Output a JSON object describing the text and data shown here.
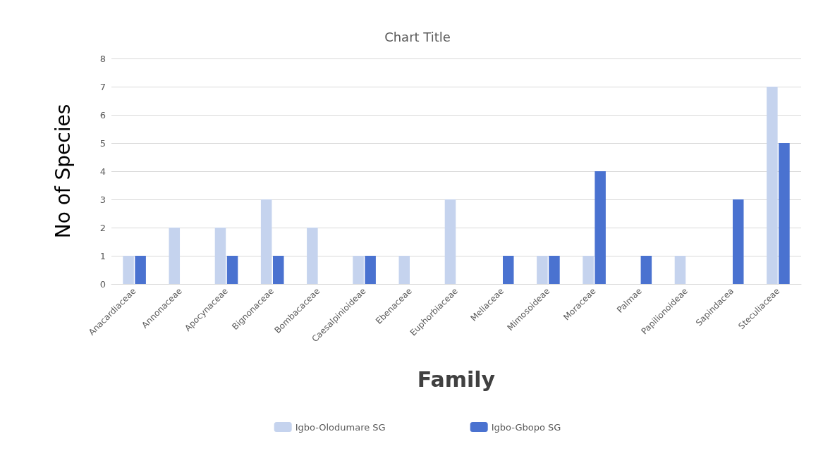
{
  "chart_data": {
    "type": "bar",
    "title": "Chart Title",
    "xlabel": "Family",
    "ylabel": "No of Species",
    "categories": [
      "Anacardiaceae",
      "Annonaceae",
      "Apocynaceae",
      "Bignonaceae",
      "Bombacaceae",
      "Caesalpinioideae",
      "Ebenaceae",
      "Euphorbiaceae",
      "Meliaceae",
      "Mimosoideae",
      "Moraceae",
      "Palmae",
      "Papilionoideae",
      "Sapindacea",
      "Steculiaceae"
    ],
    "series": [
      {
        "name": "Igbo-Olodumare SG",
        "color": "#c5d3ee",
        "values": [
          1,
          2,
          2,
          3,
          2,
          1,
          1,
          3,
          0,
          1,
          1,
          0,
          1,
          0,
          7
        ]
      },
      {
        "name": "Igbo-Gbopo SG",
        "color": "#4a72d0",
        "values": [
          1,
          0,
          1,
          1,
          0,
          1,
          0,
          0,
          1,
          1,
          4,
          1,
          0,
          3,
          5
        ]
      }
    ],
    "ylim": [
      0,
      8
    ],
    "yticks": [
      0,
      1,
      2,
      3,
      4,
      5,
      6,
      7,
      8
    ],
    "grid": "y",
    "legend": "bottom"
  }
}
